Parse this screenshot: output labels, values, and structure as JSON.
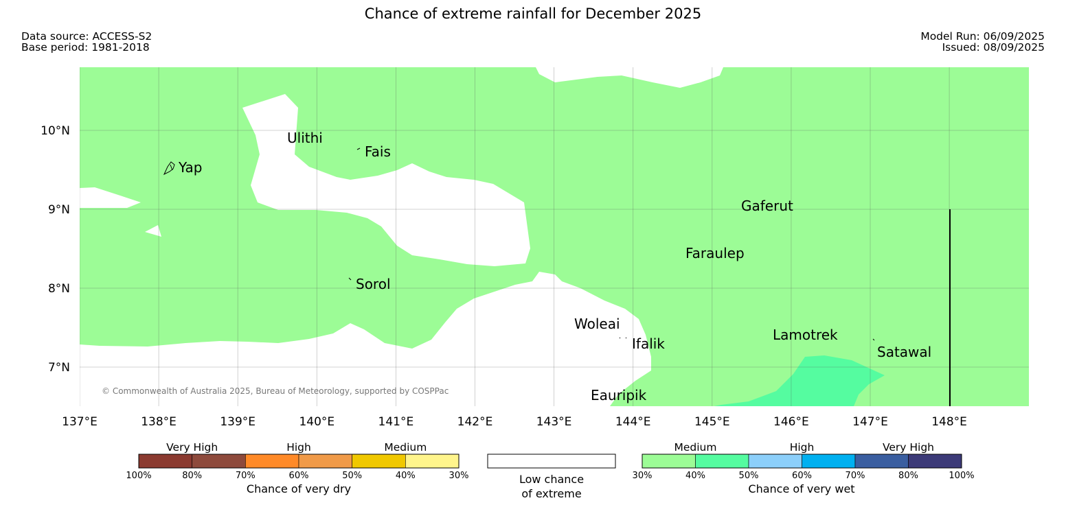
{
  "header": {
    "title": "Chance of extreme rainfall for December 2025",
    "data_source": "Data source: ACCESS-S2",
    "base_period": "Base period: 1981-2018",
    "model_run": "Model Run: 06/09/2025",
    "issued": "Issued: 08/09/2025"
  },
  "map": {
    "copyright": "© Commonwealth of Australia 2025, Bureau of Meteorology, supported by COSPPac",
    "lon_labels": [
      "137°E",
      "138°E",
      "139°E",
      "140°E",
      "141°E",
      "142°E",
      "143°E",
      "144°E",
      "145°E",
      "146°E",
      "147°E",
      "148°E"
    ],
    "lat_labels": [
      "10°N",
      "9°N",
      "8°N",
      "7°N"
    ],
    "places": {
      "yap": "Yap",
      "ulithi": "Ulithi",
      "fais": "Fais",
      "gaferut": "Gaferut",
      "faraulep": "Faraulep",
      "sorol": "Sorol",
      "woleai": "Woleai",
      "ifalik": "Ifalik",
      "lamotrek": "Lamotrek",
      "satawal": "Satawal",
      "eauripik": "Eauripik"
    },
    "colors": {
      "medium_wet": "#9cfc96",
      "medium_high_wet": "#55fca0",
      "low": "#ffffff"
    }
  },
  "legend": {
    "dry": {
      "groups": [
        "Very High",
        "High",
        "Medium"
      ],
      "ticks": [
        "100%",
        "80%",
        "70%",
        "60%",
        "50%",
        "40%",
        "30%"
      ],
      "caption": "Chance of very dry",
      "colors": [
        "#8b3a30",
        "#8e4a3c",
        "#ff8a28",
        "#f09a48",
        "#f0c800",
        "#fff58c"
      ]
    },
    "low": {
      "line1": "Low chance",
      "line2": "of extreme"
    },
    "wet": {
      "groups": [
        "Medium",
        "High",
        "Very High"
      ],
      "ticks": [
        "30%",
        "40%",
        "50%",
        "60%",
        "70%",
        "80%",
        "100%"
      ],
      "caption": "Chance of very wet",
      "colors": [
        "#9cfc96",
        "#55fca0",
        "#8ccffa",
        "#00b0f0",
        "#3a5ea0",
        "#3c3a78"
      ]
    }
  }
}
